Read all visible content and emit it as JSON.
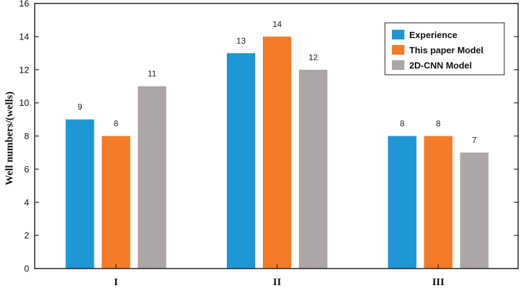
{
  "chart_data": {
    "type": "bar",
    "title": "",
    "xlabel": "",
    "ylabel": "Well numbers/(wells)",
    "ylim": [
      0,
      16
    ],
    "yticks": [
      0,
      2,
      4,
      6,
      8,
      10,
      12,
      14,
      16
    ],
    "categories": [
      "I",
      "II",
      "III"
    ],
    "series": [
      {
        "name": "Experience",
        "color": "#1f97d4",
        "values": [
          9,
          13,
          8
        ]
      },
      {
        "name": "This paper Model",
        "color": "#f47b27",
        "values": [
          8,
          14,
          8
        ]
      },
      {
        "name": "2D-CNN Model",
        "color": "#aca6a6",
        "values": [
          11,
          12,
          7
        ]
      }
    ],
    "legend": "top-right",
    "grid": false,
    "data_labels": true
  }
}
